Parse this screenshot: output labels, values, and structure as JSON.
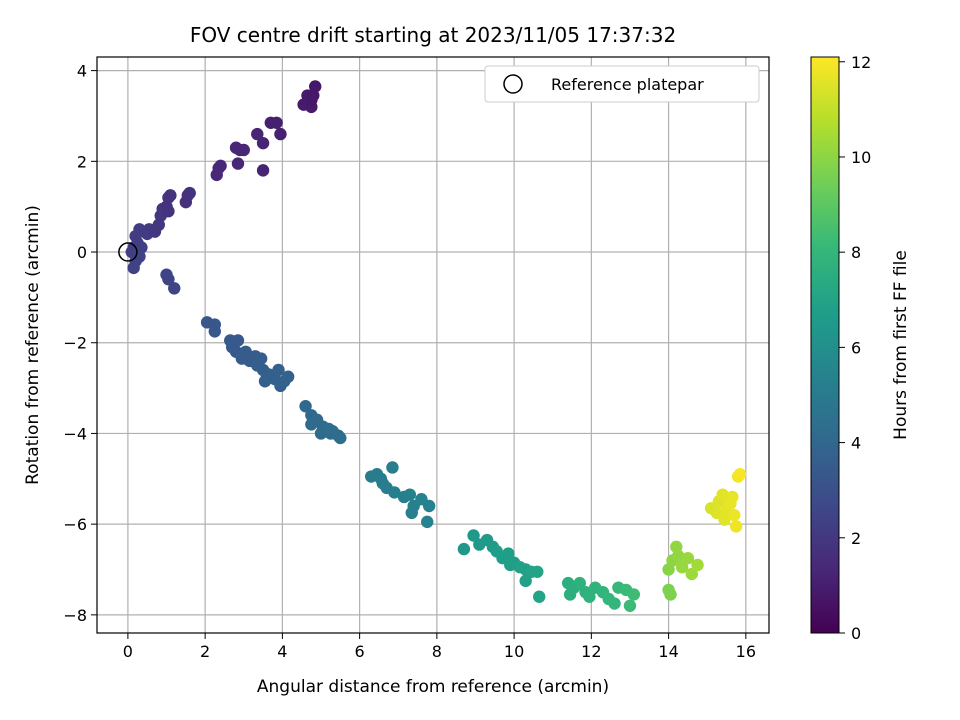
{
  "chart_data": {
    "type": "scatter",
    "title": "FOV centre drift starting at 2023/11/05 17:37:32",
    "xlabel": "Angular distance from reference (arcmin)",
    "ylabel": "Rotation from reference (arcmin)",
    "xlim": [
      -0.8,
      16.6
    ],
    "ylim": [
      -8.4,
      4.3
    ],
    "xticks": [
      0,
      2,
      4,
      6,
      8,
      10,
      12,
      14,
      16
    ],
    "yticks": [
      -8,
      -6,
      -4,
      -2,
      0,
      2,
      4
    ],
    "grid": true,
    "legend": {
      "position": "top-right",
      "entries": [
        "Reference platepar"
      ]
    },
    "reference_point": {
      "x": 0,
      "y": 0
    },
    "colorbar": {
      "label": "Hours from first FF file",
      "range": [
        0,
        12.1
      ],
      "ticks": [
        0,
        2,
        4,
        6,
        8,
        10,
        12
      ],
      "colormap": "viridis"
    },
    "colormap_stops": [
      "#440154",
      "#482878",
      "#3e4989",
      "#31688e",
      "#26828e",
      "#1f9e89",
      "#35b779",
      "#6ece58",
      "#b5de2b",
      "#fde725"
    ],
    "points": [
      {
        "x": 0.1,
        "y": 0.0,
        "t": 2.3
      },
      {
        "x": 0.15,
        "y": 0.1,
        "t": 2.3
      },
      {
        "x": 0.25,
        "y": 0.2,
        "t": 2.3
      },
      {
        "x": 0.2,
        "y": 0.35,
        "t": 2.2
      },
      {
        "x": 0.3,
        "y": 0.5,
        "t": 2.2
      },
      {
        "x": 0.35,
        "y": 0.1,
        "t": 2.3
      },
      {
        "x": 0.3,
        "y": -0.1,
        "t": 2.4
      },
      {
        "x": 0.2,
        "y": -0.2,
        "t": 2.4
      },
      {
        "x": 0.15,
        "y": -0.35,
        "t": 2.4
      },
      {
        "x": 0.5,
        "y": 0.4,
        "t": 2.1
      },
      {
        "x": 0.55,
        "y": 0.5,
        "t": 2.1
      },
      {
        "x": 0.7,
        "y": 0.45,
        "t": 2.0
      },
      {
        "x": 0.8,
        "y": 0.6,
        "t": 2.0
      },
      {
        "x": 0.85,
        "y": 0.8,
        "t": 1.9
      },
      {
        "x": 0.9,
        "y": 0.95,
        "t": 1.9
      },
      {
        "x": 1.0,
        "y": 1.0,
        "t": 1.8
      },
      {
        "x": 1.05,
        "y": 1.2,
        "t": 1.8
      },
      {
        "x": 1.1,
        "y": 1.25,
        "t": 1.8
      },
      {
        "x": 1.05,
        "y": 0.9,
        "t": 1.8
      },
      {
        "x": 1.5,
        "y": 1.1,
        "t": 1.7
      },
      {
        "x": 1.55,
        "y": 1.25,
        "t": 1.7
      },
      {
        "x": 1.6,
        "y": 1.3,
        "t": 1.7
      },
      {
        "x": 1.0,
        "y": -0.5,
        "t": 2.5
      },
      {
        "x": 1.05,
        "y": -0.6,
        "t": 2.5
      },
      {
        "x": 1.2,
        "y": -0.8,
        "t": 2.5
      },
      {
        "x": 2.3,
        "y": 1.7,
        "t": 1.4
      },
      {
        "x": 2.35,
        "y": 1.85,
        "t": 1.4
      },
      {
        "x": 2.4,
        "y": 1.9,
        "t": 1.4
      },
      {
        "x": 2.8,
        "y": 2.3,
        "t": 1.3
      },
      {
        "x": 2.9,
        "y": 2.25,
        "t": 1.3
      },
      {
        "x": 3.0,
        "y": 2.25,
        "t": 1.3
      },
      {
        "x": 2.85,
        "y": 1.95,
        "t": 1.3
      },
      {
        "x": 3.35,
        "y": 2.6,
        "t": 1.2
      },
      {
        "x": 3.5,
        "y": 2.4,
        "t": 1.2
      },
      {
        "x": 3.7,
        "y": 2.85,
        "t": 1.1
      },
      {
        "x": 3.85,
        "y": 2.85,
        "t": 1.1
      },
      {
        "x": 3.95,
        "y": 2.6,
        "t": 1.1
      },
      {
        "x": 3.5,
        "y": 1.8,
        "t": 1.2
      },
      {
        "x": 4.55,
        "y": 3.25,
        "t": 0.9
      },
      {
        "x": 4.65,
        "y": 3.45,
        "t": 0.9
      },
      {
        "x": 4.7,
        "y": 3.3,
        "t": 0.9
      },
      {
        "x": 4.75,
        "y": 3.2,
        "t": 0.9
      },
      {
        "x": 4.8,
        "y": 3.45,
        "t": 0.8
      },
      {
        "x": 4.85,
        "y": 3.65,
        "t": 0.8
      },
      {
        "x": 4.75,
        "y": 3.35,
        "t": 0.8
      },
      {
        "x": 2.05,
        "y": -1.55,
        "t": 3.3
      },
      {
        "x": 2.25,
        "y": -1.6,
        "t": 3.3
      },
      {
        "x": 2.25,
        "y": -1.75,
        "t": 3.3
      },
      {
        "x": 2.65,
        "y": -1.95,
        "t": 3.4
      },
      {
        "x": 2.7,
        "y": -2.1,
        "t": 3.4
      },
      {
        "x": 2.8,
        "y": -2.2,
        "t": 3.4
      },
      {
        "x": 2.85,
        "y": -1.95,
        "t": 3.4
      },
      {
        "x": 2.95,
        "y": -2.35,
        "t": 3.5
      },
      {
        "x": 3.05,
        "y": -2.2,
        "t": 3.5
      },
      {
        "x": 3.15,
        "y": -2.4,
        "t": 3.5
      },
      {
        "x": 3.3,
        "y": -2.3,
        "t": 3.5
      },
      {
        "x": 3.35,
        "y": -2.5,
        "t": 3.6
      },
      {
        "x": 3.45,
        "y": -2.35,
        "t": 3.6
      },
      {
        "x": 3.5,
        "y": -2.6,
        "t": 3.6
      },
      {
        "x": 3.55,
        "y": -2.85,
        "t": 3.6
      },
      {
        "x": 3.65,
        "y": -2.7,
        "t": 3.7
      },
      {
        "x": 3.8,
        "y": -2.8,
        "t": 3.7
      },
      {
        "x": 3.9,
        "y": -2.6,
        "t": 3.7
      },
      {
        "x": 3.95,
        "y": -2.95,
        "t": 3.7
      },
      {
        "x": 4.05,
        "y": -2.85,
        "t": 3.8
      },
      {
        "x": 4.15,
        "y": -2.75,
        "t": 3.8
      },
      {
        "x": 3.6,
        "y": -2.75,
        "t": 3.7
      },
      {
        "x": 4.6,
        "y": -3.4,
        "t": 4.1
      },
      {
        "x": 4.75,
        "y": -3.6,
        "t": 4.1
      },
      {
        "x": 4.9,
        "y": -3.7,
        "t": 4.2
      },
      {
        "x": 5.05,
        "y": -3.85,
        "t": 4.2
      },
      {
        "x": 5.0,
        "y": -4.0,
        "t": 4.2
      },
      {
        "x": 5.2,
        "y": -3.9,
        "t": 4.3
      },
      {
        "x": 5.3,
        "y": -3.95,
        "t": 4.3
      },
      {
        "x": 5.45,
        "y": -4.05,
        "t": 4.3
      },
      {
        "x": 5.5,
        "y": -4.1,
        "t": 4.3
      },
      {
        "x": 4.75,
        "y": -3.8,
        "t": 4.2
      },
      {
        "x": 5.25,
        "y": -4.0,
        "t": 4.3
      },
      {
        "x": 6.3,
        "y": -4.95,
        "t": 5.0
      },
      {
        "x": 6.45,
        "y": -4.9,
        "t": 5.0
      },
      {
        "x": 6.6,
        "y": -5.1,
        "t": 5.1
      },
      {
        "x": 6.7,
        "y": -5.2,
        "t": 5.1
      },
      {
        "x": 6.85,
        "y": -4.75,
        "t": 5.1
      },
      {
        "x": 6.9,
        "y": -5.3,
        "t": 5.2
      },
      {
        "x": 7.15,
        "y": -5.4,
        "t": 5.2
      },
      {
        "x": 7.3,
        "y": -5.35,
        "t": 5.3
      },
      {
        "x": 7.4,
        "y": -5.6,
        "t": 5.3
      },
      {
        "x": 7.35,
        "y": -5.75,
        "t": 5.3
      },
      {
        "x": 7.6,
        "y": -5.45,
        "t": 5.4
      },
      {
        "x": 7.8,
        "y": -5.6,
        "t": 5.4
      },
      {
        "x": 7.75,
        "y": -5.95,
        "t": 5.4
      },
      {
        "x": 6.55,
        "y": -5.0,
        "t": 5.0
      },
      {
        "x": 8.7,
        "y": -6.55,
        "t": 6.4
      },
      {
        "x": 8.95,
        "y": -6.25,
        "t": 6.5
      },
      {
        "x": 9.1,
        "y": -6.45,
        "t": 6.5
      },
      {
        "x": 9.3,
        "y": -6.35,
        "t": 6.6
      },
      {
        "x": 9.45,
        "y": -6.5,
        "t": 6.6
      },
      {
        "x": 9.55,
        "y": -6.6,
        "t": 6.7
      },
      {
        "x": 9.7,
        "y": -6.75,
        "t": 6.7
      },
      {
        "x": 9.85,
        "y": -6.65,
        "t": 6.8
      },
      {
        "x": 10.0,
        "y": -6.85,
        "t": 6.8
      },
      {
        "x": 10.15,
        "y": -6.95,
        "t": 6.9
      },
      {
        "x": 10.3,
        "y": -7.0,
        "t": 6.9
      },
      {
        "x": 10.45,
        "y": -7.05,
        "t": 7.0
      },
      {
        "x": 10.6,
        "y": -7.05,
        "t": 7.0
      },
      {
        "x": 10.65,
        "y": -7.6,
        "t": 7.0
      },
      {
        "x": 10.3,
        "y": -7.25,
        "t": 6.9
      },
      {
        "x": 9.9,
        "y": -6.9,
        "t": 6.8
      },
      {
        "x": 11.4,
        "y": -7.3,
        "t": 7.6
      },
      {
        "x": 11.55,
        "y": -7.4,
        "t": 7.6
      },
      {
        "x": 11.45,
        "y": -7.55,
        "t": 7.6
      },
      {
        "x": 11.7,
        "y": -7.3,
        "t": 7.7
      },
      {
        "x": 11.85,
        "y": -7.5,
        "t": 7.7
      },
      {
        "x": 11.95,
        "y": -7.6,
        "t": 7.8
      },
      {
        "x": 12.1,
        "y": -7.4,
        "t": 7.8
      },
      {
        "x": 12.3,
        "y": -7.5,
        "t": 7.9
      },
      {
        "x": 12.45,
        "y": -7.65,
        "t": 8.0
      },
      {
        "x": 12.6,
        "y": -7.75,
        "t": 8.0
      },
      {
        "x": 12.7,
        "y": -7.4,
        "t": 8.1
      },
      {
        "x": 12.9,
        "y": -7.45,
        "t": 8.2
      },
      {
        "x": 13.0,
        "y": -7.8,
        "t": 8.2
      },
      {
        "x": 13.1,
        "y": -7.55,
        "t": 8.3
      },
      {
        "x": 14.0,
        "y": -7.45,
        "t": 9.7
      },
      {
        "x": 14.05,
        "y": -7.55,
        "t": 9.7
      },
      {
        "x": 14.0,
        "y": -7.0,
        "t": 9.9
      },
      {
        "x": 14.1,
        "y": -6.8,
        "t": 10.0
      },
      {
        "x": 14.2,
        "y": -6.5,
        "t": 10.1
      },
      {
        "x": 14.25,
        "y": -6.7,
        "t": 10.1
      },
      {
        "x": 14.35,
        "y": -6.95,
        "t": 10.2
      },
      {
        "x": 14.5,
        "y": -6.75,
        "t": 10.2
      },
      {
        "x": 14.6,
        "y": -7.1,
        "t": 10.3
      },
      {
        "x": 14.75,
        "y": -6.9,
        "t": 10.4
      },
      {
        "x": 15.1,
        "y": -5.65,
        "t": 11.4
      },
      {
        "x": 15.25,
        "y": -5.75,
        "t": 11.5
      },
      {
        "x": 15.3,
        "y": -5.5,
        "t": 11.5
      },
      {
        "x": 15.4,
        "y": -5.35,
        "t": 11.6
      },
      {
        "x": 15.45,
        "y": -5.9,
        "t": 11.6
      },
      {
        "x": 15.5,
        "y": -5.7,
        "t": 11.6
      },
      {
        "x": 15.6,
        "y": -5.55,
        "t": 11.7
      },
      {
        "x": 15.65,
        "y": -5.4,
        "t": 11.7
      },
      {
        "x": 15.7,
        "y": -5.8,
        "t": 11.8
      },
      {
        "x": 15.75,
        "y": -6.05,
        "t": 11.8
      },
      {
        "x": 15.8,
        "y": -4.95,
        "t": 11.9
      },
      {
        "x": 15.85,
        "y": -4.9,
        "t": 12.0
      }
    ]
  }
}
